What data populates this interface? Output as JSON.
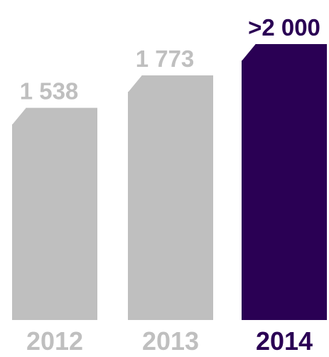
{
  "chart_data": {
    "type": "bar",
    "categories": [
      "2012",
      "2013",
      "2014"
    ],
    "values": [
      1538,
      1773,
      2000
    ],
    "value_labels": [
      "1 538",
      "1 773",
      ">2 000"
    ],
    "title": "",
    "xlabel": "",
    "ylabel": "",
    "ylim": [
      0,
      2000
    ],
    "legend": "none",
    "grid": false
  },
  "colors": {
    "bar_default": "#bfbfbf",
    "bar_highlight": "#2a0054",
    "label_default": "#bfbfbf",
    "label_highlight": "#2a0054",
    "background": "#ffffff"
  },
  "highlight_index": 2
}
